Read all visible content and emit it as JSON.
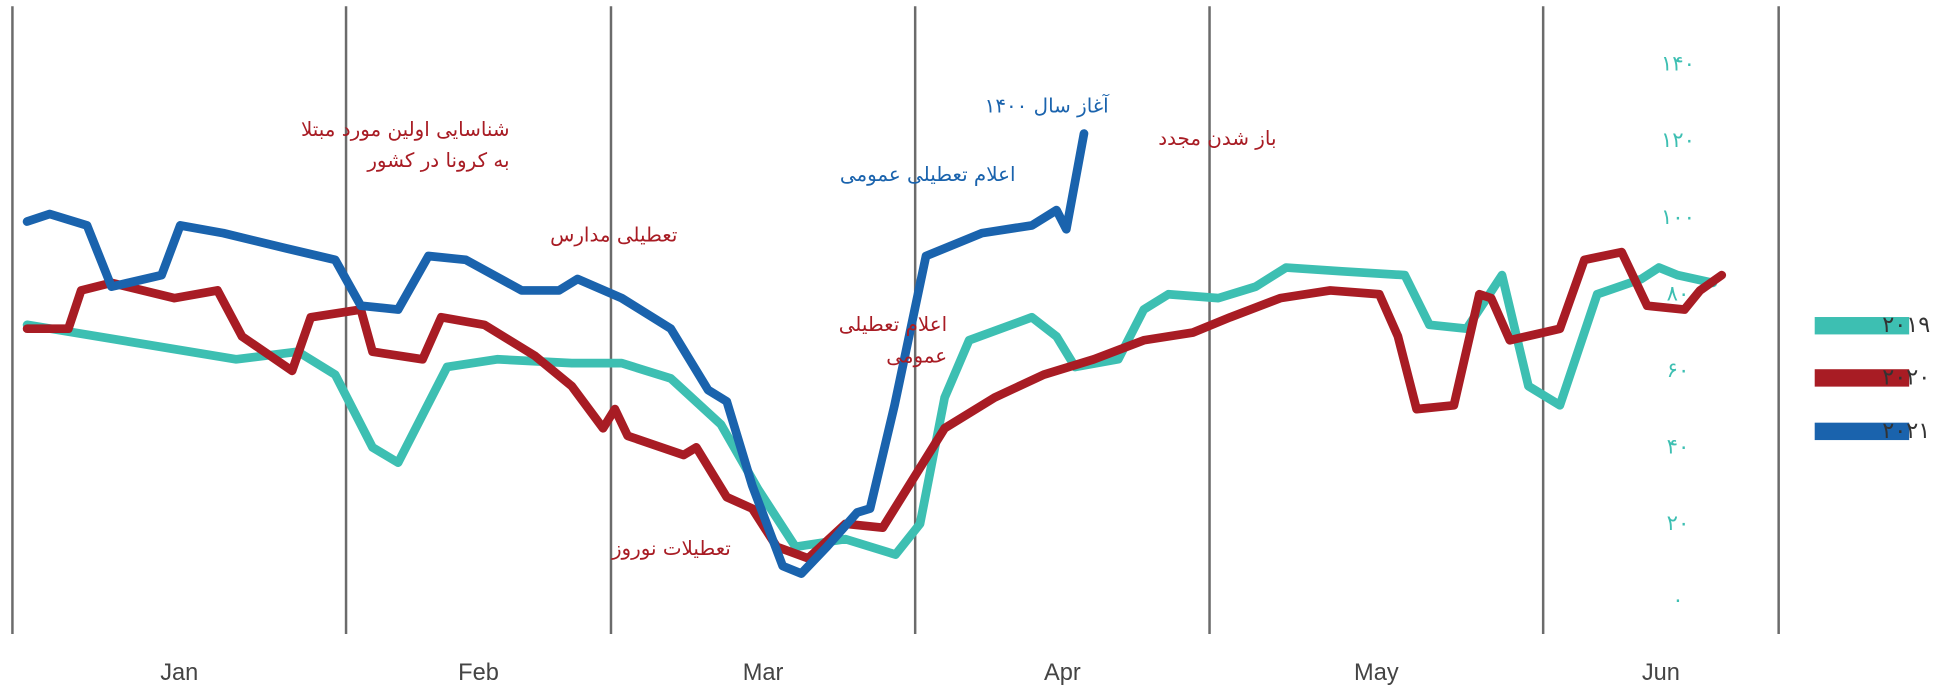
{
  "chart_data": {
    "type": "line",
    "categories": [
      "Jan",
      "Feb",
      "Mar",
      "Apr",
      "May",
      "Jun"
    ],
    "xlim": [
      0,
      180
    ],
    "xticks": [
      0,
      34,
      61,
      92,
      122,
      156,
      180
    ],
    "ylim": [
      0,
      140
    ],
    "yticks": [
      {
        "value": 0,
        "label": "۰"
      },
      {
        "value": 20,
        "label": "۲۰"
      },
      {
        "value": 40,
        "label": "۴۰"
      },
      {
        "value": 60,
        "label": "۶۰"
      },
      {
        "value": 80,
        "label": "۸۰"
      },
      {
        "value": 100,
        "label": "۱۰۰"
      },
      {
        "value": 120,
        "label": "۱۲۰"
      },
      {
        "value": 140,
        "label": "۱۴۰"
      }
    ],
    "grid": true,
    "legend": "right",
    "series": [
      {
        "name": "۲۰۱۹",
        "color": "#3dbfb2",
        "x": [
          1.5,
          22.8,
          29.1,
          32.9,
          36.7,
          39.3,
          44.3,
          49.4,
          57,
          62.1,
          67.1,
          72.2,
          76,
          79.8,
          84.9,
          90,
          92.5,
          95,
          97.5,
          103.9,
          106.4,
          108.3,
          112.7,
          115.3,
          117.8,
          122.9,
          126.7,
          129.8,
          135.5,
          141.9,
          144.4,
          148.2,
          151.8,
          154.5,
          157.7,
          161.5,
          166,
          167.8,
          169.7,
          173.3
        ],
        "values": [
          72,
          63,
          65,
          59,
          40,
          36,
          61,
          63,
          62,
          62,
          58,
          46,
          29,
          14,
          16,
          12,
          20,
          53,
          68,
          74,
          69,
          61,
          63,
          76,
          80,
          79,
          82,
          87,
          86,
          85,
          72,
          71,
          85,
          56,
          51,
          80,
          84,
          87,
          85,
          83
        ]
      },
      {
        "name": "۲۰۲۰",
        "color": "#a81c24",
        "x": [
          1.5,
          5.7,
          7,
          10.1,
          16.5,
          20.9,
          23.4,
          28.5,
          30.4,
          35.5,
          36.7,
          41.8,
          43.7,
          48.1,
          53.2,
          57,
          60.2,
          61.4,
          62.7,
          68.4,
          69.7,
          72.8,
          75.4,
          77.9,
          81.1,
          84.9,
          88.7,
          95,
          100.1,
          105.1,
          110.2,
          115.3,
          120.3,
          124.1,
          129.2,
          134.3,
          139.3,
          141.2,
          143.1,
          146.9,
          149.5,
          150.7,
          152.6,
          157.7,
          160.2,
          164,
          166.6,
          170.4,
          172,
          174.2
        ],
        "values": [
          71,
          71,
          81,
          83,
          79,
          81,
          69,
          60,
          74,
          76,
          65,
          63,
          74,
          72,
          64,
          56,
          45,
          50,
          43,
          38,
          40,
          27,
          24,
          14,
          11,
          20,
          19,
          45,
          53,
          59,
          63,
          68,
          70,
          74,
          79,
          81,
          80,
          69,
          50,
          51,
          80,
          79,
          68,
          71,
          89,
          91,
          77,
          76,
          81,
          85
        ]
      },
      {
        "name": "۲۰۲۱",
        "color": "#1a63ad",
        "x": [
          1.5,
          3.8,
          7.6,
          10.1,
          15.2,
          17.1,
          21.5,
          27.9,
          32.9,
          35.5,
          39.3,
          42.4,
          46.2,
          51.9,
          55.7,
          57.6,
          62.1,
          67.1,
          70.9,
          72.8,
          75.4,
          78.5,
          80.4,
          83,
          86.1,
          87.4,
          89.9,
          93.1,
          98.8,
          103.9,
          106.4,
          107.4,
          109.2
        ],
        "values": [
          99,
          101,
          98,
          82,
          85,
          98,
          96,
          92,
          89,
          77,
          76,
          90,
          89,
          81,
          81,
          84,
          79,
          71,
          55,
          52,
          30,
          9,
          7,
          14,
          23,
          24,
          51,
          90,
          96,
          98,
          102,
          97,
          122
        ]
      }
    ],
    "annotations": [
      {
        "lines": [
          "شناسایی اولین مورد مبتلا",
          "به کرونا در کشور"
        ],
        "color": "#a81c24"
      },
      {
        "lines": [
          "تعطیلی مدارس"
        ],
        "color": "#a81c24"
      },
      {
        "lines": [
          "تعطیلات نوروز"
        ],
        "color": "#a81c24"
      },
      {
        "lines": [
          "اعلام تعطیلی",
          "عمومی"
        ],
        "color": "#a81c24"
      },
      {
        "lines": [
          "آغاز سال ۱۴۰۰"
        ],
        "color": "#1a63ad"
      },
      {
        "lines": [
          "اعلام تعطیلی عمومی"
        ],
        "color": "#1a63ad"
      },
      {
        "lines": [
          "باز شدن مجدد"
        ],
        "color": "#a81c24"
      }
    ]
  }
}
